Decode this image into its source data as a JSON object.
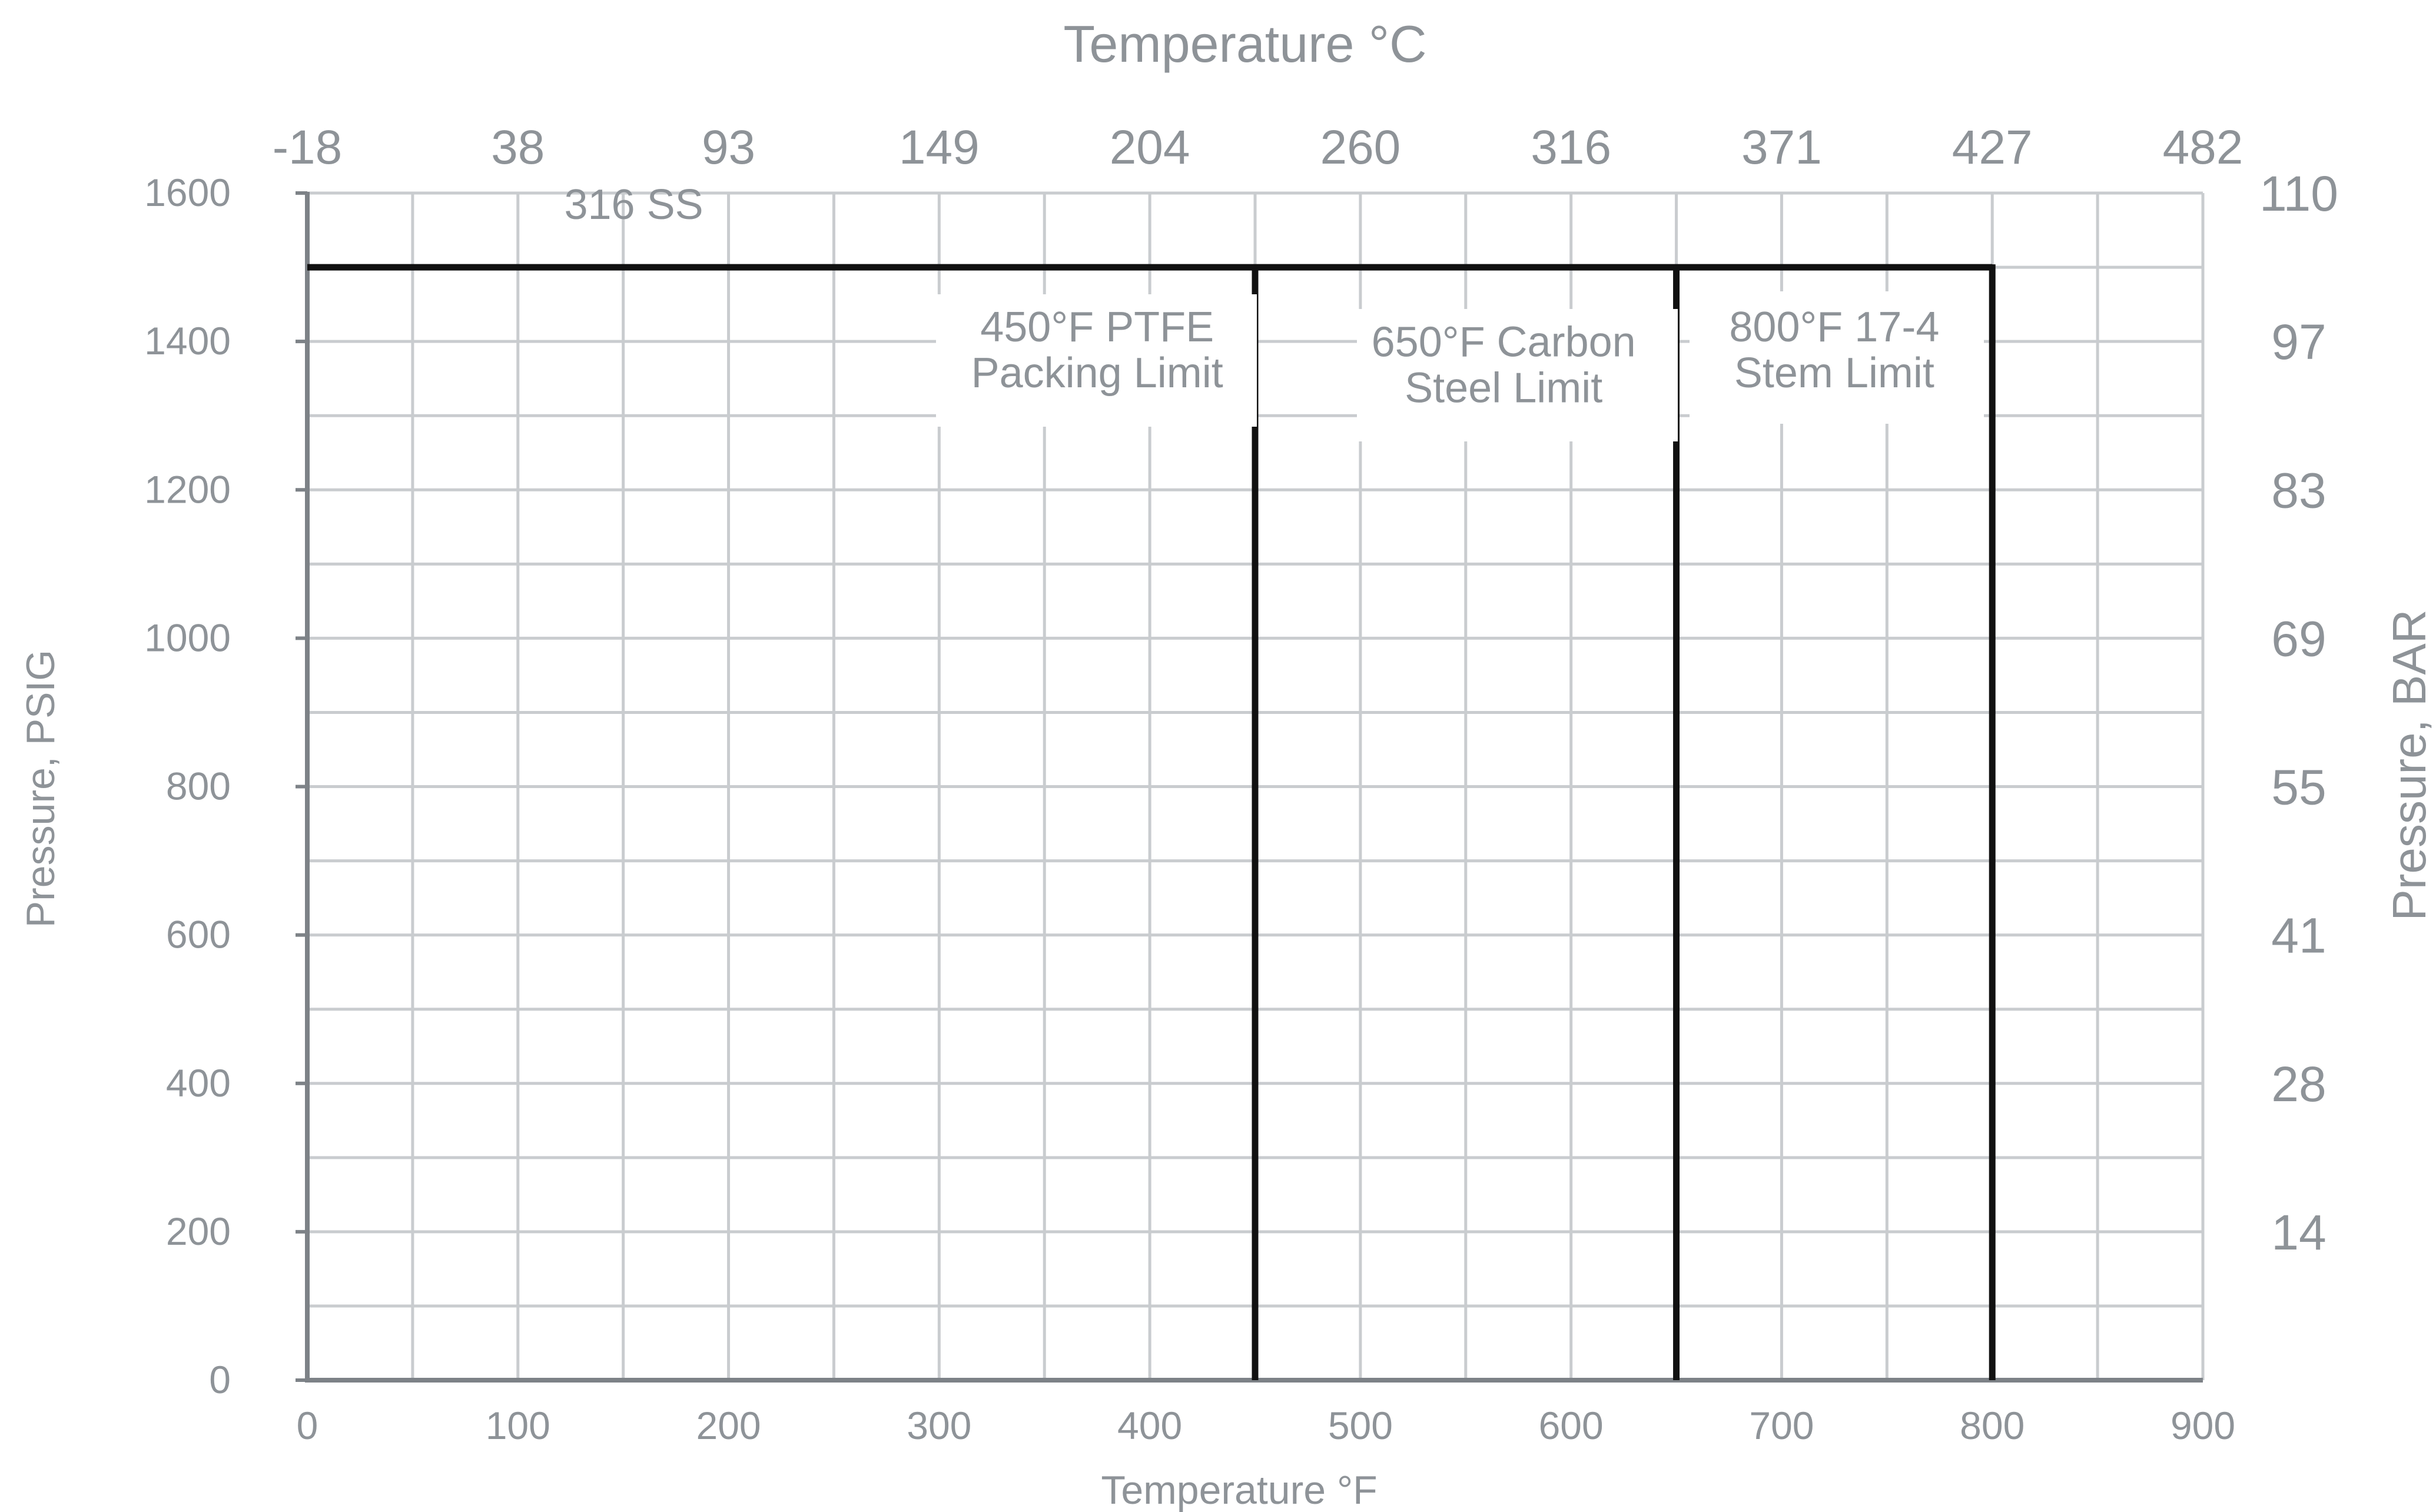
{
  "chart_data": {
    "type": "line",
    "title": "",
    "xlabel": "Temperature °F",
    "ylabel": "Pressure, PSIG",
    "x2label": "Temperature °C",
    "y2label": "Pressure, BAR",
    "xlim": [
      0,
      900
    ],
    "ylim": [
      0,
      1600
    ],
    "grid": true,
    "x_ticks": [
      "0",
      "100",
      "200",
      "300",
      "400",
      "500",
      "600",
      "700",
      "800",
      "900"
    ],
    "y_ticks": [
      "0",
      "200",
      "400",
      "600",
      "800",
      "1000",
      "1200",
      "1400",
      "1600"
    ],
    "x2_ticks": [
      {
        "label": "-18",
        "at_f": 0
      },
      {
        "label": "38",
        "at_f": 100
      },
      {
        "label": "93",
        "at_f": 200
      },
      {
        "label": "149",
        "at_f": 300
      },
      {
        "label": "204",
        "at_f": 400
      },
      {
        "label": "260",
        "at_f": 500
      },
      {
        "label": "316",
        "at_f": 600
      },
      {
        "label": "371",
        "at_f": 700
      },
      {
        "label": "427",
        "at_f": 800
      },
      {
        "label": "482",
        "at_f": 900
      }
    ],
    "y2_ticks": [
      {
        "label": "14",
        "at_psig": 200
      },
      {
        "label": "28",
        "at_psig": 400
      },
      {
        "label": "41",
        "at_psig": 600
      },
      {
        "label": "55",
        "at_psig": 800
      },
      {
        "label": "69",
        "at_psig": 1000
      },
      {
        "label": "83",
        "at_psig": 1200
      },
      {
        "label": "97",
        "at_psig": 1400
      },
      {
        "label": "110",
        "at_psig": 1600
      }
    ],
    "series": [
      {
        "name": "316 SS",
        "x": [
          0,
          800
        ],
        "y": [
          1500,
          1500
        ]
      }
    ],
    "limit_lines": [
      {
        "x": 450,
        "y_top": 1500
      },
      {
        "x": 650,
        "y_top": 1500
      },
      {
        "x": 800,
        "y_top": 1500
      }
    ],
    "annotations": [
      {
        "lines": [
          "316 SS"
        ],
        "x": 155,
        "y": 1565
      },
      {
        "lines": [
          "450°F PTFE",
          "Packing Limit"
        ],
        "x": 375,
        "y": 1400
      },
      {
        "lines": [
          "650°F Carbon",
          "Steel Limit"
        ],
        "x": 568,
        "y": 1380
      },
      {
        "lines": [
          "800°F 17-4",
          "Stem Limit"
        ],
        "x": 725,
        "y": 1400
      }
    ]
  }
}
